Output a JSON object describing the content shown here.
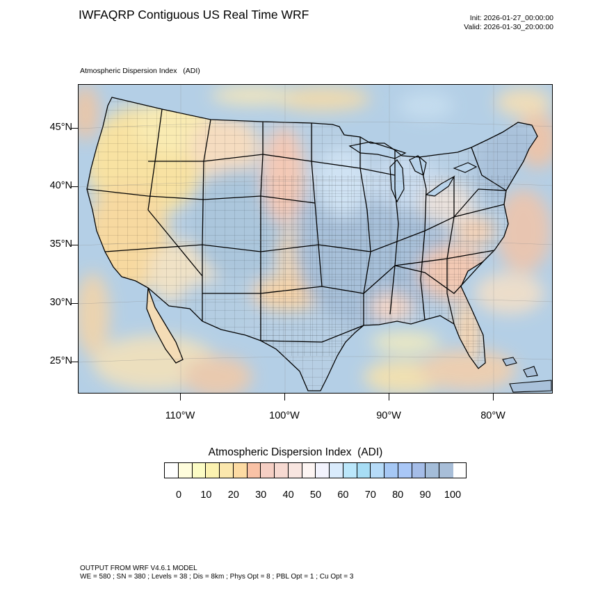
{
  "header": {
    "title": "IWFAQRP Contiguous US Real Time WRF",
    "init_time": "Init: 2026-01-27_00:00:00",
    "valid_time": "Valid: 2026-01-30_20:00:00"
  },
  "map": {
    "subtitle": "Atmospheric Dispersion Index   (ADI)",
    "lat_labels": [
      "45°N",
      "40°N",
      "35°N",
      "30°N",
      "25°N"
    ],
    "lon_labels": [
      "110°W",
      "100°W",
      "90°W",
      "80°W"
    ],
    "colors": {
      "land_low": "#f7e7a3",
      "land_mid": "#f2c9b0",
      "land_high": "#a8c4dc",
      "ocean": "#b9d4ea",
      "border": "#000000"
    }
  },
  "legend": {
    "title": "Atmospheric Dispersion Index  (ADI)",
    "colors": [
      "#ffffff",
      "#fffddc",
      "#fcfcc4",
      "#fbf2b0",
      "#fbe7ad",
      "#fddba3",
      "#f9c2a6",
      "#f5cfc4",
      "#f6d9d1",
      "#f8e5e0",
      "#fdf5f3",
      "#f2f3fd",
      "#d9ebfc",
      "#bbe7fb",
      "#a7ddf5",
      "#b6dbf8",
      "#a6c8f5",
      "#a9c7f7",
      "#a5bde8",
      "#a4bdd9",
      "#a8bed8"
    ],
    "tick_labels": [
      "0",
      "10",
      "20",
      "30",
      "40",
      "50",
      "60",
      "70",
      "80",
      "90",
      "100"
    ]
  },
  "footer": {
    "model_line": "OUTPUT FROM WRF V4.6.1 MODEL",
    "config_line": "WE = 580 ; SN = 380 ; Levels = 38 ; Dis = 8km ; Phys Opt = 8 ; PBL Opt = 1 ; Cu Opt = 3"
  }
}
